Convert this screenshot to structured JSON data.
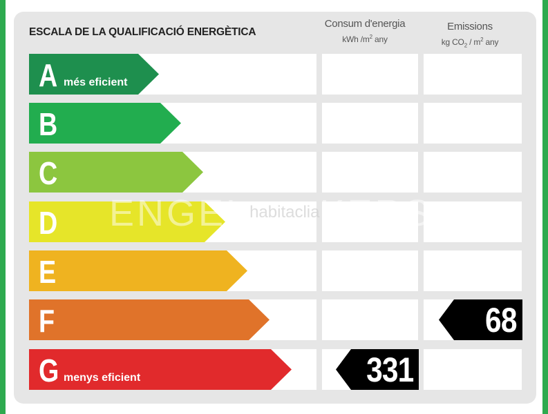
{
  "title": "ESCALA DE LA QUALIFICACIÓ ENERGÈTICA",
  "columns": {
    "energy": {
      "line1": "Consum d'energia",
      "line2_pre": "kWh /m",
      "line2_sup": "2",
      "line2_post": " any"
    },
    "emissions": {
      "line1": "Emissions",
      "line2_pre": "kg CO",
      "line2_sub": "2",
      "line2_mid": " / m",
      "line2_sup": "2",
      "line2_post": " any"
    }
  },
  "rows": [
    {
      "letter": "A",
      "sub": "més eficient",
      "color": "#1e8f4e"
    },
    {
      "letter": "B",
      "sub": "",
      "color": "#22ad4f"
    },
    {
      "letter": "C",
      "sub": "",
      "color": "#8cc63f"
    },
    {
      "letter": "D",
      "sub": "",
      "color": "#e6e529"
    },
    {
      "letter": "E",
      "sub": "",
      "color": "#efb320"
    },
    {
      "letter": "F",
      "sub": "",
      "color": "#e0732a"
    },
    {
      "letter": "G",
      "sub": "menys eficient",
      "color": "#e12a2c"
    }
  ],
  "energy_rating": {
    "class": "G",
    "value": "331"
  },
  "emissions_rating": {
    "class": "F",
    "value": "68"
  },
  "watermark": {
    "left": "ENGEL",
    "middle": "habitaclia",
    "right": "KERS"
  },
  "colors": {
    "frame": "#2eaa4f",
    "panel": "#e6e6e6",
    "badge": "#000000"
  }
}
